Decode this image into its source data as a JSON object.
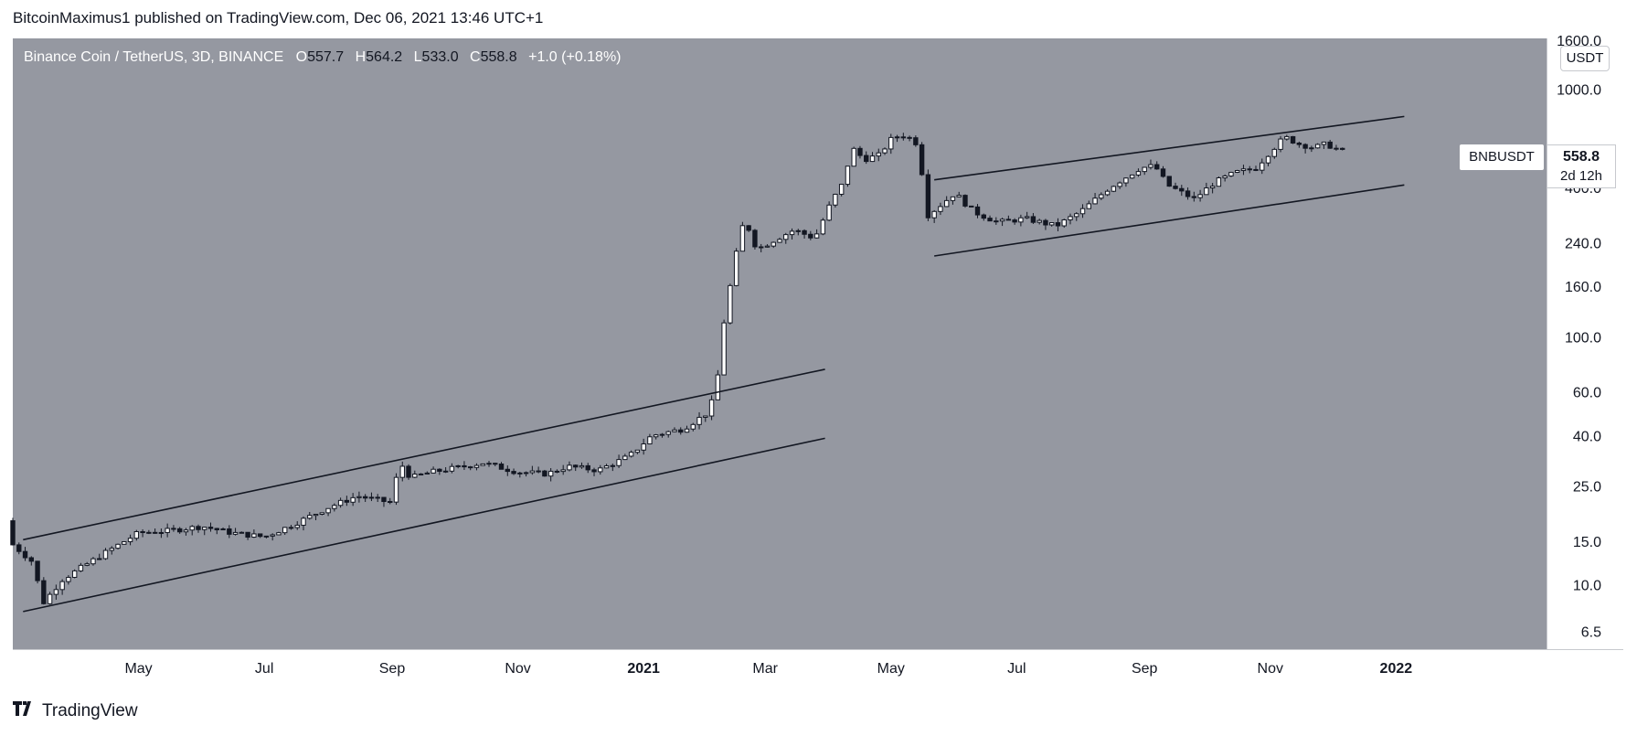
{
  "header": {
    "publish_line": "BitcoinMaximus1 published on TradingView.com, Dec 06, 2021 13:46 UTC+1"
  },
  "legend": {
    "title": "Binance Coin / TetherUS, 3D, BINANCE",
    "open_label": "O",
    "open": "557.7",
    "high_label": "H",
    "high": "564.2",
    "low_label": "L",
    "low": "533.0",
    "close_label": "C",
    "close": "558.8",
    "change": "+1.0 (+0.18%)"
  },
  "price_axis": {
    "unit": "USDT",
    "top_partial_label": "1600.0"
  },
  "symbol_tag": "BNBUSDT",
  "price_tag": {
    "price": "558.8",
    "countdown": "2d 12h"
  },
  "footer": {
    "brand": "TradingView",
    "logo_icon": "tradingview-logo-icon"
  },
  "colors": {
    "plot_bg": "#9598a1",
    "up_candle": "#ffffff",
    "down_candle": "#131722",
    "trendline": "#131722"
  },
  "chart_data": {
    "type": "candlestick",
    "title": "Binance Coin / TetherUS, 3D, BINANCE",
    "xlabel": "",
    "ylabel": "",
    "y_scale": "log",
    "ylim": [
      5.5,
      1600
    ],
    "y_ticks": [
      6.5,
      10,
      15,
      25,
      40,
      60,
      100,
      160,
      240,
      400,
      1000
    ],
    "x_ticks": [
      "May",
      "Jul",
      "Sep",
      "Nov",
      "2021",
      "Mar",
      "May",
      "Jul",
      "Sep",
      "Nov",
      "2022"
    ],
    "x_tick_dates": [
      "2020-05-01",
      "2020-07-01",
      "2020-09-01",
      "2020-11-01",
      "2021-01-01",
      "2021-03-01",
      "2021-05-01",
      "2021-07-01",
      "2021-09-01",
      "2021-11-01",
      "2022-01-01"
    ],
    "xlim_dates": [
      "2020-03-01",
      "2022-03-15"
    ],
    "grid": false,
    "close_anchors": [
      [
        "2020-03-01",
        14.5
      ],
      [
        "2020-03-10",
        12.5
      ],
      [
        "2020-03-16",
        8.5
      ],
      [
        "2020-03-25",
        10.5
      ],
      [
        "2020-04-15",
        13.5
      ],
      [
        "2020-05-01",
        16.2
      ],
      [
        "2020-05-15",
        16.5
      ],
      [
        "2020-06-01",
        17.2
      ],
      [
        "2020-06-15",
        16.2
      ],
      [
        "2020-07-01",
        15.6
      ],
      [
        "2020-07-15",
        17.5
      ],
      [
        "2020-08-01",
        20.5
      ],
      [
        "2020-08-15",
        22.8
      ],
      [
        "2020-08-31",
        21.5
      ],
      [
        "2020-09-05",
        31.0
      ],
      [
        "2020-09-10",
        27.0
      ],
      [
        "2020-09-20",
        28.5
      ],
      [
        "2020-10-01",
        29.5
      ],
      [
        "2020-10-15",
        31.0
      ],
      [
        "2020-11-01",
        28.5
      ],
      [
        "2020-11-15",
        28.0
      ],
      [
        "2020-11-25",
        30.0
      ],
      [
        "2020-12-10",
        29.0
      ],
      [
        "2020-12-25",
        33.0
      ],
      [
        "2021-01-05",
        40.0
      ],
      [
        "2021-01-20",
        42.5
      ],
      [
        "2021-02-02",
        50.0
      ],
      [
        "2021-02-06",
        70.0
      ],
      [
        "2021-02-09",
        115.0
      ],
      [
        "2021-02-12",
        160.0
      ],
      [
        "2021-02-16",
        240.0
      ],
      [
        "2021-02-19",
        300.0
      ],
      [
        "2021-02-25",
        225.0
      ],
      [
        "2021-03-05",
        245.0
      ],
      [
        "2021-03-15",
        270.0
      ],
      [
        "2021-03-25",
        250.0
      ],
      [
        "2021-04-02",
        350.0
      ],
      [
        "2021-04-08",
        420.0
      ],
      [
        "2021-04-12",
        580.0
      ],
      [
        "2021-04-18",
        520.0
      ],
      [
        "2021-04-25",
        540.0
      ],
      [
        "2021-05-02",
        640.0
      ],
      [
        "2021-05-08",
        650.0
      ],
      [
        "2021-05-14",
        600.0
      ],
      [
        "2021-05-19",
        310.0
      ],
      [
        "2021-05-25",
        340.0
      ],
      [
        "2021-06-01",
        380.0
      ],
      [
        "2021-06-10",
        320.0
      ],
      [
        "2021-06-22",
        290.0
      ],
      [
        "2021-07-05",
        300.0
      ],
      [
        "2021-07-20",
        280.0
      ],
      [
        "2021-08-01",
        320.0
      ],
      [
        "2021-08-15",
        400.0
      ],
      [
        "2021-08-30",
        480.0
      ],
      [
        "2021-09-06",
        490.0
      ],
      [
        "2021-09-12",
        410.0
      ],
      [
        "2021-09-25",
        360.0
      ],
      [
        "2021-10-05",
        420.0
      ],
      [
        "2021-10-15",
        460.0
      ],
      [
        "2021-10-25",
        480.0
      ],
      [
        "2021-11-01",
        560.0
      ],
      [
        "2021-11-08",
        640.0
      ],
      [
        "2021-11-15",
        600.0
      ],
      [
        "2021-11-22",
        580.0
      ],
      [
        "2021-11-28",
        600.0
      ],
      [
        "2021-12-06",
        558.8
      ]
    ],
    "trendlines": [
      {
        "from": [
          "2020-03-06",
          15.2
        ],
        "to": [
          "2021-03-30",
          74.0
        ]
      },
      {
        "from": [
          "2020-03-06",
          7.8
        ],
        "to": [
          "2021-03-30",
          39.0
        ]
      },
      {
        "from": [
          "2021-05-22",
          430.0
        ],
        "to": [
          "2022-01-05",
          775.0
        ]
      },
      {
        "from": [
          "2021-05-22",
          212.0
        ],
        "to": [
          "2022-01-05",
          410.0
        ]
      }
    ]
  }
}
